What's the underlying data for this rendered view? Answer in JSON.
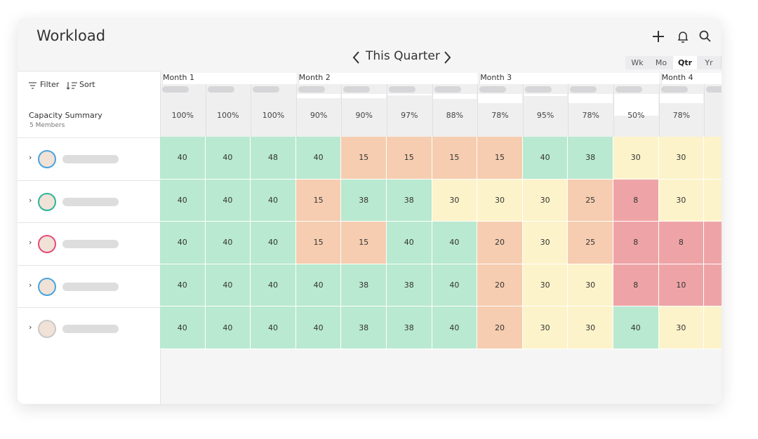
{
  "header": {
    "title": "Workload",
    "period": "This Quarter",
    "views": [
      "Wk",
      "Mo",
      "Qtr",
      "Yr"
    ],
    "active_view": 2
  },
  "toolbar": {
    "filter": "Filter",
    "sort": "Sort"
  },
  "summary": {
    "title": "Capacity Summary",
    "members": "5 Members"
  },
  "months": [
    {
      "label": "Month 1",
      "columns": 3
    },
    {
      "label": "Month 2",
      "columns": 4
    },
    {
      "label": "Month 3",
      "columns": 4
    },
    {
      "label": "Month 4",
      "columns": 2
    }
  ],
  "capacity": [
    {
      "value": 100,
      "label": "100%"
    },
    {
      "value": 100,
      "label": "100%"
    },
    {
      "value": 100,
      "label": "100%"
    },
    {
      "value": 90,
      "label": "90%"
    },
    {
      "value": 90,
      "label": "90%"
    },
    {
      "value": 97,
      "label": "97%"
    },
    {
      "value": 88,
      "label": "88%"
    },
    {
      "value": 78,
      "label": "78%"
    },
    {
      "value": 95,
      "label": "95%"
    },
    {
      "value": 78,
      "label": "78%"
    },
    {
      "value": 50,
      "label": "50%"
    },
    {
      "value": 78,
      "label": "78%"
    },
    null
  ],
  "rows": [
    {
      "values": [
        40,
        40,
        48,
        40,
        15,
        15,
        15,
        15,
        40,
        38,
        30,
        30,
        null
      ],
      "colors": [
        "#b9e9d0",
        "#b9e9d0",
        "#b9e9d0",
        "#b9e9d0",
        "#f6cdb0",
        "#f6cdb0",
        "#f6cdb0",
        "#f6cdb0",
        "#b9e9d0",
        "#b9e9d0",
        "#fdf3ca",
        "#fdf3ca",
        "#fdf3ca"
      ]
    },
    {
      "values": [
        40,
        40,
        40,
        15,
        38,
        38,
        30,
        30,
        30,
        25,
        8,
        30,
        null
      ],
      "colors": [
        "#b9e9d0",
        "#b9e9d0",
        "#b9e9d0",
        "#f6cdb0",
        "#b9e9d0",
        "#b9e9d0",
        "#fdf3ca",
        "#fdf3ca",
        "#fdf3ca",
        "#f6cdb0",
        "#eea4a6",
        "#fdf3ca",
        "#fdf3ca"
      ]
    },
    {
      "values": [
        40,
        40,
        40,
        15,
        15,
        40,
        40,
        20,
        30,
        25,
        8,
        8,
        null
      ],
      "colors": [
        "#b9e9d0",
        "#b9e9d0",
        "#b9e9d0",
        "#f6cdb0",
        "#f6cdb0",
        "#b9e9d0",
        "#b9e9d0",
        "#f6cdb0",
        "#fdf3ca",
        "#f6cdb0",
        "#eea4a6",
        "#eea4a6",
        "#eea4a6"
      ]
    },
    {
      "values": [
        40,
        40,
        40,
        40,
        38,
        38,
        40,
        20,
        30,
        30,
        8,
        10,
        null
      ],
      "colors": [
        "#b9e9d0",
        "#b9e9d0",
        "#b9e9d0",
        "#b9e9d0",
        "#b9e9d0",
        "#b9e9d0",
        "#b9e9d0",
        "#f6cdb0",
        "#fdf3ca",
        "#fdf3ca",
        "#eea4a6",
        "#eea4a6",
        "#eea4a6"
      ]
    },
    {
      "values": [
        40,
        40,
        40,
        40,
        38,
        38,
        40,
        20,
        30,
        30,
        40,
        30,
        null
      ],
      "colors": [
        "#b9e9d0",
        "#b9e9d0",
        "#b9e9d0",
        "#b9e9d0",
        "#b9e9d0",
        "#b9e9d0",
        "#b9e9d0",
        "#f6cdb0",
        "#fdf3ca",
        "#fdf3ca",
        "#b9e9d0",
        "#fdf3ca",
        "#fdf3ca"
      ]
    }
  ]
}
